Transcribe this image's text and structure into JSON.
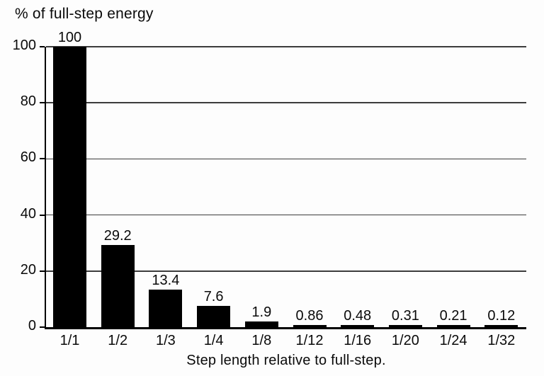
{
  "chart_data": {
    "type": "bar",
    "title": "% of full-step energy",
    "xlabel": "Step length relative to full-step.",
    "ylabel": "% of full-step energy",
    "categories": [
      "1/1",
      "1/2",
      "1/3",
      "1/4",
      "1/8",
      "1/12",
      "1/16",
      "1/20",
      "1/24",
      "1/32"
    ],
    "values": [
      100,
      29.2,
      13.4,
      7.6,
      1.9,
      0.86,
      0.48,
      0.31,
      0.21,
      0.12
    ],
    "value_labels": [
      "100",
      "29.2",
      "13.4",
      "7.6",
      "1.9",
      "0.86",
      "0.48",
      "0.31",
      "0.21",
      "0.12"
    ],
    "y_ticks": [
      0,
      20,
      40,
      60,
      80,
      100
    ],
    "ylim": [
      0,
      100
    ],
    "grid": "horizontal",
    "legend": "none",
    "bar_color": "#000000",
    "grid_color": "#3c3c3c",
    "axis_color": "#000000",
    "background": "#fdfdfd"
  }
}
